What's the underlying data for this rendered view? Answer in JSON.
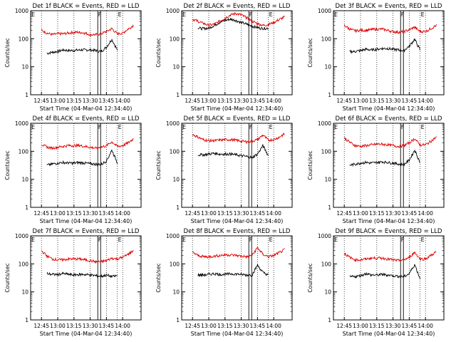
{
  "figure": {
    "colors": {
      "events": "#000000",
      "lld": "#e00000",
      "axes": "#000000",
      "grid": "#000000"
    }
  },
  "chart_data": [
    {
      "type": "line",
      "title": "Det 1f BLACK = Events, RED = LLD",
      "xlabel": "Start Time (04-Mar-04 12:34:40)",
      "ylabel": "Counts/sec",
      "yscale": "log",
      "ylim": [
        1,
        1000
      ],
      "x_ticks": [
        "12:45",
        "13:00",
        "13:15",
        "13:30",
        "13:45",
        "14:00"
      ],
      "y_ticks": [
        "1",
        "10",
        "100",
        "1000"
      ],
      "markers": [
        "F",
        "E"
      ],
      "x": [
        "12:45",
        "12:50",
        "12:55",
        "13:00",
        "13:05",
        "13:10",
        "13:15",
        "13:20",
        "13:25",
        "13:30",
        "13:35",
        "13:40",
        "13:45",
        "13:50",
        "13:55",
        "14:00",
        "14:05",
        "14:10"
      ],
      "series": [
        {
          "name": "Events",
          "values": [
            null,
            30,
            33,
            35,
            40,
            38,
            38,
            40,
            40,
            40,
            38,
            35,
            50,
            95,
            40,
            null,
            null,
            null
          ]
        },
        {
          "name": "LLD",
          "values": [
            200,
            160,
            140,
            150,
            150,
            160,
            170,
            170,
            160,
            140,
            140,
            150,
            180,
            230,
            150,
            160,
            220,
            300
          ]
        }
      ]
    },
    {
      "type": "line",
      "title": "Det 2f BLACK = Events, RED = LLD",
      "xlabel": "Start Time (04-Mar-04 12:34:40)",
      "ylabel": "Counts/sec",
      "yscale": "log",
      "ylim": [
        1,
        1000
      ],
      "x_ticks": [
        "12:45",
        "13:00",
        "13:15",
        "13:30",
        "13:45",
        "14:00"
      ],
      "y_ticks": [
        "1",
        "10",
        "100",
        "1000"
      ],
      "markers": [
        "F",
        "E"
      ],
      "x": [
        "12:45",
        "12:50",
        "12:55",
        "13:00",
        "13:05",
        "13:10",
        "13:15",
        "13:20",
        "13:25",
        "13:30",
        "13:35",
        "13:40",
        "13:45",
        "13:50",
        "13:55",
        "14:00",
        "14:05",
        "14:10"
      ],
      "series": [
        {
          "name": "Events",
          "values": [
            null,
            240,
            230,
            240,
            300,
            380,
            450,
            500,
            450,
            380,
            330,
            280,
            250,
            230,
            240,
            null,
            null,
            null
          ]
        },
        {
          "name": "LLD",
          "values": [
            500,
            420,
            350,
            300,
            330,
            420,
            550,
            700,
            800,
            700,
            560,
            420,
            350,
            300,
            320,
            380,
            480,
            600
          ]
        }
      ]
    },
    {
      "type": "line",
      "title": "Det 3f BLACK = Events, RED = LLD",
      "xlabel": "Start Time (04-Mar-04 12:34:40)",
      "ylabel": "Counts/sec",
      "yscale": "log",
      "ylim": [
        1,
        1000
      ],
      "x_ticks": [
        "12:45",
        "13:00",
        "13:15",
        "13:30",
        "13:45",
        "14:00"
      ],
      "y_ticks": [
        "1",
        "10",
        "100",
        "1000"
      ],
      "markers": [
        "F",
        "E"
      ],
      "x": [
        "12:45",
        "12:50",
        "12:55",
        "13:00",
        "13:05",
        "13:10",
        "13:15",
        "13:20",
        "13:25",
        "13:30",
        "13:35",
        "13:40",
        "13:45",
        "13:50",
        "13:55",
        "14:00",
        "14:05",
        "14:10"
      ],
      "series": [
        {
          "name": "Events",
          "values": [
            null,
            35,
            35,
            38,
            42,
            40,
            42,
            45,
            45,
            42,
            40,
            38,
            55,
            95,
            40,
            null,
            null,
            null
          ]
        },
        {
          "name": "LLD",
          "values": [
            300,
            220,
            190,
            200,
            200,
            210,
            220,
            220,
            200,
            180,
            170,
            180,
            210,
            260,
            180,
            180,
            230,
            300
          ]
        }
      ]
    },
    {
      "type": "line",
      "title": "Det 4f BLACK = Events, RED = LLD",
      "xlabel": "Start Time (04-Mar-04 12:34:40)",
      "ylabel": "Counts/sec",
      "yscale": "log",
      "ylim": [
        1,
        1000
      ],
      "x_ticks": [
        "12:45",
        "13:00",
        "13:15",
        "13:30",
        "13:45",
        "14:00"
      ],
      "y_ticks": [
        "1",
        "10",
        "100",
        "1000"
      ],
      "markers": [
        "F",
        "E"
      ],
      "x": [
        "12:45",
        "12:50",
        "12:55",
        "13:00",
        "13:05",
        "13:10",
        "13:15",
        "13:20",
        "13:25",
        "13:30",
        "13:35",
        "13:40",
        "13:45",
        "13:50",
        "13:55",
        "14:00",
        "14:05",
        "14:10"
      ],
      "series": [
        {
          "name": "Events",
          "values": [
            null,
            32,
            35,
            38,
            40,
            38,
            38,
            40,
            38,
            36,
            35,
            34,
            45,
            110,
            40,
            null,
            null,
            null
          ]
        },
        {
          "name": "LLD",
          "values": [
            180,
            140,
            130,
            140,
            150,
            160,
            160,
            160,
            150,
            140,
            130,
            140,
            160,
            220,
            150,
            160,
            200,
            280
          ]
        }
      ]
    },
    {
      "type": "line",
      "title": "Det 5f BLACK = Events, RED = LLD",
      "xlabel": "Start Time (04-Mar-04 12:34:40)",
      "ylabel": "Counts/sec",
      "yscale": "log",
      "ylim": [
        1,
        1000
      ],
      "x_ticks": [
        "12:45",
        "13:00",
        "13:15",
        "13:30",
        "13:45",
        "14:00"
      ],
      "y_ticks": [
        "1",
        "10",
        "100",
        "1000"
      ],
      "markers": [
        "F",
        "E"
      ],
      "x": [
        "12:45",
        "12:50",
        "12:55",
        "13:00",
        "13:05",
        "13:10",
        "13:15",
        "13:20",
        "13:25",
        "13:30",
        "13:35",
        "13:40",
        "13:45",
        "13:50",
        "13:55",
        "14:00",
        "14:05",
        "14:10"
      ],
      "series": [
        {
          "name": "Events",
          "values": [
            null,
            75,
            75,
            80,
            85,
            80,
            80,
            80,
            75,
            70,
            65,
            60,
            80,
            160,
            70,
            null,
            null,
            null
          ]
        },
        {
          "name": "LLD",
          "values": [
            400,
            320,
            260,
            240,
            240,
            250,
            260,
            260,
            250,
            230,
            220,
            230,
            260,
            380,
            250,
            260,
            320,
            420
          ]
        }
      ]
    },
    {
      "type": "line",
      "title": "Det 6f BLACK = Events, RED = LLD",
      "xlabel": "Start Time (04-Mar-04 12:34:40)",
      "ylabel": "Counts/sec",
      "yscale": "log",
      "ylim": [
        1,
        1000
      ],
      "x_ticks": [
        "12:45",
        "13:00",
        "13:15",
        "13:30",
        "13:45",
        "14:00"
      ],
      "y_ticks": [
        "1",
        "10",
        "100",
        "1000"
      ],
      "markers": [
        "F",
        "E"
      ],
      "x": [
        "12:45",
        "12:50",
        "12:55",
        "13:00",
        "13:05",
        "13:10",
        "13:15",
        "13:20",
        "13:25",
        "13:30",
        "13:35",
        "13:40",
        "13:45",
        "13:50",
        "13:55",
        "14:00",
        "14:05",
        "14:10"
      ],
      "series": [
        {
          "name": "Events",
          "values": [
            null,
            32,
            35,
            38,
            40,
            38,
            40,
            42,
            40,
            38,
            35,
            34,
            48,
            110,
            40,
            null,
            null,
            null
          ]
        },
        {
          "name": "LLD",
          "values": [
            300,
            210,
            160,
            150,
            160,
            170,
            180,
            180,
            170,
            160,
            150,
            160,
            200,
            280,
            170,
            170,
            230,
            320
          ]
        }
      ]
    },
    {
      "type": "line",
      "title": "Det 7f BLACK = Events, RED = LLD",
      "xlabel": "Start Time (04-Mar-04 12:34:40)",
      "ylabel": "Counts/sec",
      "yscale": "log",
      "ylim": [
        1,
        1000
      ],
      "x_ticks": [
        "12:45",
        "13:00",
        "13:15",
        "13:30",
        "13:45",
        "14:00"
      ],
      "y_ticks": [
        "1",
        "10",
        "100",
        "1000"
      ],
      "markers": [
        "F",
        "E"
      ],
      "x": [
        "12:45",
        "12:50",
        "12:55",
        "13:00",
        "13:05",
        "13:10",
        "13:15",
        "13:20",
        "13:25",
        "13:30",
        "13:35",
        "13:40",
        "13:45",
        "13:50",
        "13:55",
        "14:00",
        "14:05",
        "14:10"
      ],
      "series": [
        {
          "name": "Events",
          "values": [
            null,
            45,
            42,
            42,
            45,
            42,
            40,
            42,
            42,
            40,
            38,
            36,
            40,
            35,
            38,
            null,
            null,
            null
          ]
        },
        {
          "name": "LLD",
          "values": [
            300,
            190,
            150,
            140,
            140,
            150,
            150,
            150,
            140,
            130,
            120,
            120,
            130,
            160,
            150,
            170,
            220,
            300
          ]
        }
      ]
    },
    {
      "type": "line",
      "title": "Det 8f BLACK = Events, RED = LLD",
      "xlabel": "Start Time (04-Mar-04 12:34:40)",
      "ylabel": "Counts/sec",
      "yscale": "log",
      "ylim": [
        1,
        1000
      ],
      "x_ticks": [
        "12:45",
        "13:00",
        "13:15",
        "13:30",
        "13:45",
        "14:00"
      ],
      "y_ticks": [
        "1",
        "10",
        "100",
        "1000"
      ],
      "markers": [
        "F",
        "E"
      ],
      "x": [
        "12:45",
        "12:50",
        "12:55",
        "13:00",
        "13:05",
        "13:10",
        "13:15",
        "13:20",
        "13:25",
        "13:30",
        "13:35",
        "13:40",
        "13:45",
        "13:50",
        "13:55",
        "14:00",
        "14:05",
        "14:10"
      ],
      "series": [
        {
          "name": "Events",
          "values": [
            null,
            40,
            40,
            42,
            45,
            42,
            42,
            44,
            44,
            42,
            40,
            40,
            90,
            50,
            40,
            null,
            null,
            null
          ]
        },
        {
          "name": "LLD",
          "values": [
            260,
            200,
            180,
            180,
            190,
            200,
            210,
            210,
            200,
            190,
            180,
            200,
            380,
            220,
            180,
            200,
            250,
            320
          ]
        }
      ]
    },
    {
      "type": "line",
      "title": "Det 9f BLACK = Events, RED = LLD",
      "xlabel": "Start Time (04-Mar-04 12:34:40)",
      "ylabel": "Counts/sec",
      "yscale": "log",
      "ylim": [
        1,
        1000
      ],
      "x_ticks": [
        "12:45",
        "13:00",
        "13:15",
        "13:30",
        "13:45",
        "14:00"
      ],
      "y_ticks": [
        "1",
        "10",
        "100",
        "1000"
      ],
      "markers": [
        "F",
        "E"
      ],
      "x": [
        "12:45",
        "12:50",
        "12:55",
        "13:00",
        "13:05",
        "13:10",
        "13:15",
        "13:20",
        "13:25",
        "13:30",
        "13:35",
        "13:40",
        "13:45",
        "13:50",
        "13:55",
        "14:00",
        "14:05",
        "14:10"
      ],
      "series": [
        {
          "name": "Events",
          "values": [
            null,
            35,
            35,
            38,
            45,
            40,
            40,
            42,
            40,
            38,
            36,
            35,
            45,
            95,
            30,
            null,
            null,
            null
          ]
        },
        {
          "name": "LLD",
          "values": [
            240,
            170,
            140,
            140,
            150,
            160,
            160,
            160,
            150,
            140,
            130,
            140,
            170,
            260,
            150,
            150,
            200,
            270
          ]
        }
      ]
    }
  ]
}
